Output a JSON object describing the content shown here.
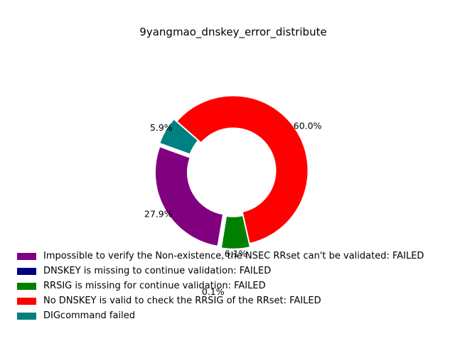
{
  "chart_data": {
    "type": "donut",
    "title": "9yangmao_dnskey_error_distribute",
    "slices": [
      {
        "label": "Impossible to verify the Non-existence, the NSEC RRset can't be validated: FAILED",
        "value": 27.9,
        "pct_label": "27.9%",
        "color": "#800080"
      },
      {
        "label": "DNSKEY is missing to continue validation: FAILED",
        "value": 0.1,
        "pct_label": "0.1%",
        "color": "#000080"
      },
      {
        "label": "RRSIG is missing for continue validation: FAILED",
        "value": 6.1,
        "pct_label": "6.1%",
        "color": "#008000"
      },
      {
        "label": "No DNSKEY is valid to check the RRSIG of the RRset: FAILED",
        "value": 60.0,
        "pct_label": "60.0%",
        "color": "#ff0000"
      },
      {
        "label": "DIGcommand failed",
        "value": 5.9,
        "pct_label": "5.9%",
        "color": "#008080"
      }
    ],
    "legend_position": "bottom"
  }
}
